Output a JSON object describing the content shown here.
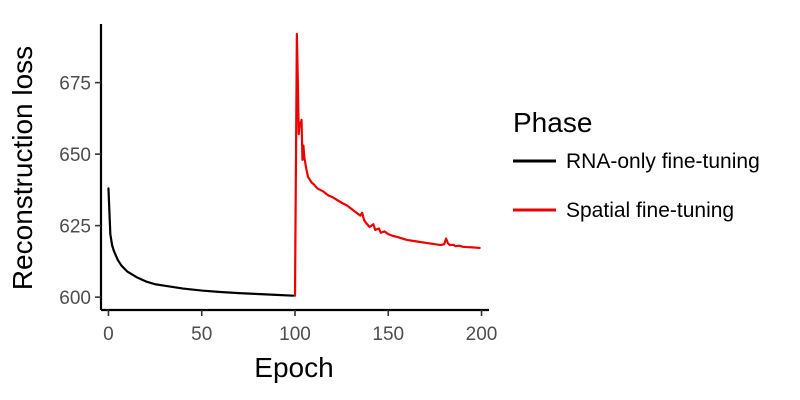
{
  "chart_data": {
    "type": "line",
    "xlabel": "Epoch",
    "ylabel": "Reconstruction loss",
    "xlim": [
      -4,
      204
    ],
    "ylim": [
      595.5,
      695.5
    ],
    "xticks": [
      0,
      50,
      100,
      150,
      200
    ],
    "yticks": [
      600,
      625,
      650,
      675
    ],
    "grid": false,
    "legend": {
      "title": "Phase",
      "position": "right"
    },
    "series": [
      {
        "name": "RNA-only fine-tuning",
        "color": "#000000",
        "x": [
          0,
          1,
          2,
          3,
          4,
          5,
          7,
          10,
          15,
          20,
          25,
          30,
          40,
          50,
          60,
          70,
          80,
          90,
          99
        ],
        "y": [
          638,
          622,
          618,
          616,
          614.5,
          613,
          611,
          609,
          607,
          605.5,
          604.5,
          604,
          603,
          602.3,
          601.8,
          601.4,
          601.1,
          600.8,
          600.5
        ]
      },
      {
        "name": "Spatial fine-tuning",
        "color": "#ee0000",
        "x": [
          100,
          101,
          101.5,
          102,
          102.5,
          103,
          103.5,
          104,
          104.5,
          105,
          106,
          107,
          108,
          109,
          110,
          112,
          115,
          118,
          120,
          125,
          128,
          130,
          135,
          136,
          137,
          138,
          140,
          142,
          143,
          145,
          146,
          148,
          150,
          152,
          155,
          160,
          165,
          170,
          175,
          178,
          180,
          181,
          182,
          183,
          185,
          186,
          188,
          190,
          192,
          195,
          199
        ],
        "y": [
          600.5,
          692,
          676,
          657,
          661,
          660,
          662,
          648,
          653,
          649,
          645,
          642,
          641,
          640,
          639.5,
          638,
          637,
          635.5,
          635,
          633,
          632,
          631,
          628.5,
          629.5,
          627,
          626,
          624.5,
          625.5,
          623.5,
          624,
          622.5,
          623,
          622,
          621.5,
          621,
          620,
          619.5,
          619,
          618.5,
          618.2,
          618.5,
          620.5,
          618.8,
          618.2,
          618.3,
          617.8,
          618,
          617.6,
          617.5,
          617.4,
          617.2
        ]
      }
    ]
  }
}
